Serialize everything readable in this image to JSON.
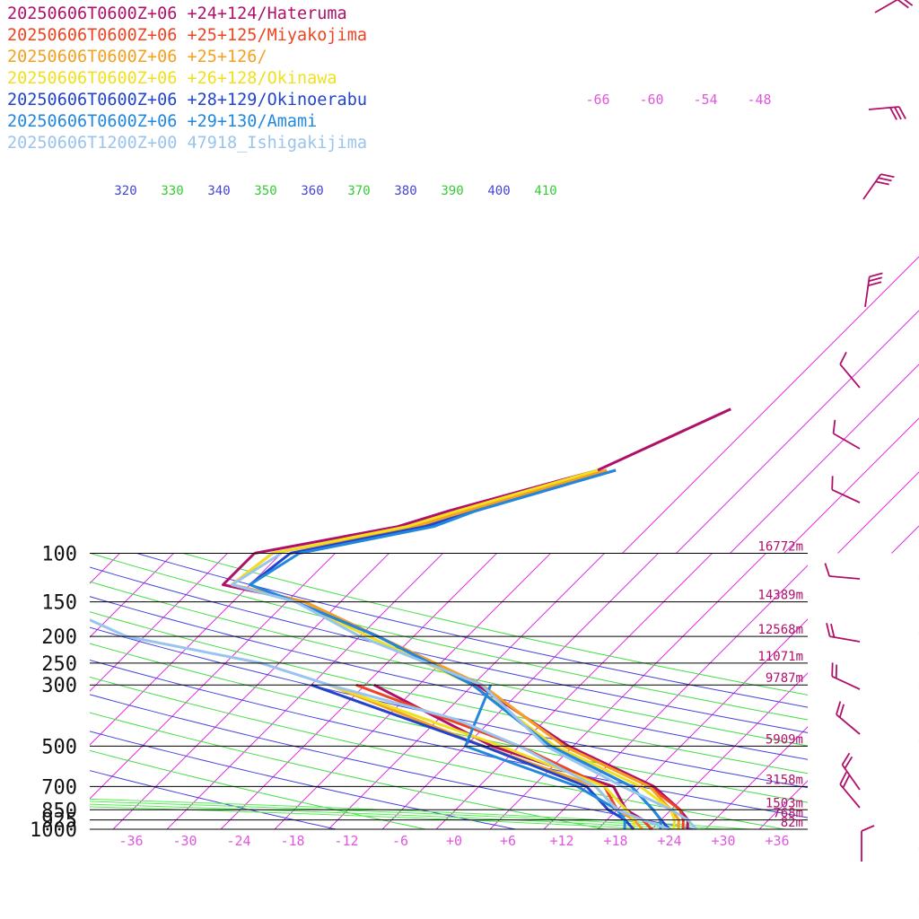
{
  "chart_data": {
    "type": "line",
    "title": "",
    "xlabel": "",
    "ylabel": "",
    "legend_placement": "top-left",
    "x_axis": {
      "unit": "degC",
      "ticks": [
        "-36",
        "-30",
        "-24",
        "-18",
        "-12",
        "-6",
        "+0",
        "+6",
        "+12",
        "+18",
        "+24",
        "+30",
        "+36"
      ],
      "color": "#e056e0"
    },
    "pressure_levels": [
      {
        "p": 100,
        "label": "100",
        "height": "16772m"
      },
      {
        "p": 150,
        "label": "150",
        "height": "14389m"
      },
      {
        "p": 200,
        "label": "200",
        "height": "12568m"
      },
      {
        "p": 250,
        "label": "250",
        "height": "11071m"
      },
      {
        "p": 300,
        "label": "300",
        "height": "9787m"
      },
      {
        "p": 500,
        "label": "500",
        "height": "5909m"
      },
      {
        "p": 700,
        "label": "700",
        "height": "3158m"
      },
      {
        "p": 850,
        "label": "850",
        "height": "1503m"
      },
      {
        "p": 925,
        "label": "925",
        "height": "768m"
      },
      {
        "p": 1000,
        "label": "1000",
        "height": "82m"
      }
    ],
    "isotherm_top_labels": [
      "-66",
      "-60",
      "-54",
      "-48"
    ],
    "theta_labels": [
      {
        "text": "320",
        "color": "#4444dd"
      },
      {
        "text": "330",
        "color": "#33cc33"
      },
      {
        "text": "340",
        "color": "#4444dd"
      },
      {
        "text": "350",
        "color": "#33cc33"
      },
      {
        "text": "360",
        "color": "#4444dd"
      },
      {
        "text": "370",
        "color": "#33cc33"
      },
      {
        "text": "380",
        "color": "#4444dd"
      },
      {
        "text": "390",
        "color": "#33cc33"
      },
      {
        "text": "400",
        "color": "#4444dd"
      },
      {
        "text": "410",
        "color": "#33cc33"
      }
    ],
    "series": [
      {
        "name": "20250606T0600Z+06 +24+124/Hateruma",
        "color": "#b0106a",
        "temp": [
          [
            1000,
            26
          ],
          [
            925,
            25
          ],
          [
            850,
            23
          ],
          [
            700,
            17.5
          ],
          [
            500,
            3.5
          ],
          [
            300,
            -13.5
          ],
          [
            200,
            -30
          ],
          [
            150,
            -42
          ],
          [
            130,
            -53
          ],
          [
            100,
            -53
          ],
          [
            80,
            -40
          ],
          [
            70,
            -36
          ],
          [
            50,
            -24
          ],
          [
            30,
            -16
          ]
        ],
        "dew": [
          [
            1000,
            22
          ],
          [
            925,
            20
          ],
          [
            850,
            17
          ],
          [
            700,
            13
          ],
          [
            500,
            -5
          ],
          [
            300,
            -25
          ]
        ]
      },
      {
        "name": "20250606T0600Z+06 +25+125/Miyakojima",
        "color": "#ee4422",
        "temp": [
          [
            1000,
            25.5
          ],
          [
            925,
            24.5
          ],
          [
            850,
            23
          ],
          [
            700,
            17
          ],
          [
            500,
            3
          ],
          [
            300,
            -13
          ],
          [
            200,
            -30
          ],
          [
            150,
            -42
          ],
          [
            130,
            -52
          ],
          [
            100,
            -51
          ],
          [
            80,
            -38
          ],
          [
            70,
            -35
          ],
          [
            50,
            -23
          ]
        ],
        "dew": [
          [
            1000,
            22
          ],
          [
            925,
            20
          ],
          [
            850,
            16
          ],
          [
            700,
            12
          ],
          [
            500,
            -2
          ],
          [
            300,
            -27
          ]
        ]
      },
      {
        "name": "20250606T0600Z+06 +25+126/",
        "color": "#f6a020",
        "temp": [
          [
            1000,
            25
          ],
          [
            925,
            24
          ],
          [
            850,
            22
          ],
          [
            700,
            17
          ],
          [
            500,
            3
          ],
          [
            300,
            -13
          ],
          [
            200,
            -30
          ],
          [
            150,
            -42
          ],
          [
            130,
            -52
          ],
          [
            100,
            -51
          ],
          [
            80,
            -38
          ],
          [
            70,
            -34
          ],
          [
            50,
            -23
          ]
        ],
        "dew": [
          [
            1000,
            21
          ],
          [
            925,
            19
          ],
          [
            850,
            16
          ],
          [
            700,
            11
          ],
          [
            500,
            -6
          ],
          [
            300,
            -30
          ]
        ]
      },
      {
        "name": "20250606T0600Z+06 +26+128/Okinawa",
        "color": "#f0e020",
        "temp": [
          [
            1000,
            24.5
          ],
          [
            925,
            23.5
          ],
          [
            850,
            22
          ],
          [
            700,
            16
          ],
          [
            500,
            2
          ],
          [
            300,
            -14
          ],
          [
            200,
            -31
          ],
          [
            150,
            -43
          ],
          [
            130,
            -52
          ],
          [
            100,
            -51
          ],
          [
            80,
            -39
          ],
          [
            70,
            -35
          ],
          [
            50,
            -24
          ]
        ],
        "dew": [
          [
            1000,
            20
          ],
          [
            925,
            19
          ],
          [
            850,
            17
          ],
          [
            700,
            12
          ],
          [
            500,
            -4
          ],
          [
            300,
            -30
          ]
        ]
      },
      {
        "name": "20250606T0600Z+06 +28+129/Okinoerabu",
        "color": "#2244cc",
        "temp": [
          [
            1000,
            24
          ],
          [
            925,
            22
          ],
          [
            850,
            20
          ],
          [
            700,
            15
          ],
          [
            500,
            1.5
          ],
          [
            300,
            -14
          ],
          [
            200,
            -30
          ],
          [
            150,
            -43
          ],
          [
            130,
            -50
          ],
          [
            100,
            -49
          ],
          [
            80,
            -37
          ],
          [
            70,
            -33
          ],
          [
            50,
            -22
          ]
        ],
        "dew": [
          [
            1000,
            20
          ],
          [
            925,
            18
          ],
          [
            850,
            15
          ],
          [
            700,
            10
          ],
          [
            500,
            -6
          ],
          [
            300,
            -32
          ]
        ]
      },
      {
        "name": "20250606T0600Z+06 +29+130/Amami",
        "color": "#2288dd",
        "temp": [
          [
            1000,
            23
          ],
          [
            925,
            22
          ],
          [
            850,
            20
          ],
          [
            700,
            15
          ],
          [
            500,
            1.5
          ],
          [
            300,
            -14
          ],
          [
            200,
            -30
          ],
          [
            150,
            -43
          ],
          [
            130,
            -50
          ],
          [
            100,
            -48
          ],
          [
            80,
            -36
          ],
          [
            70,
            -33
          ],
          [
            50,
            -22
          ]
        ],
        "dew": [
          [
            1000,
            19
          ],
          [
            925,
            18
          ],
          [
            850,
            16
          ],
          [
            700,
            9
          ],
          [
            500,
            -8
          ],
          [
            300,
            -12
          ]
        ]
      },
      {
        "name": "20250606T1200Z+00 47918_Ishigakijima",
        "color": "#99c4ee",
        "temp": [
          [
            1000,
            27
          ],
          [
            925,
            25
          ],
          [
            850,
            22
          ],
          [
            700,
            14
          ],
          [
            500,
            1
          ],
          [
            300,
            -13
          ],
          [
            200,
            -32
          ],
          [
            150,
            -43
          ],
          [
            130,
            -52
          ],
          [
            100,
            -50
          ]
        ],
        "dew": [
          [
            1000,
            24
          ],
          [
            925,
            20
          ],
          [
            850,
            16
          ],
          [
            700,
            11
          ],
          [
            600,
            5
          ],
          [
            500,
            -2
          ],
          [
            400,
            -12
          ],
          [
            300,
            -30
          ],
          [
            250,
            -40
          ],
          [
            200,
            -58
          ],
          [
            170,
            -65
          ],
          [
            150,
            -73
          ],
          [
            130,
            -77
          ],
          [
            100,
            -76
          ]
        ]
      }
    ]
  }
}
